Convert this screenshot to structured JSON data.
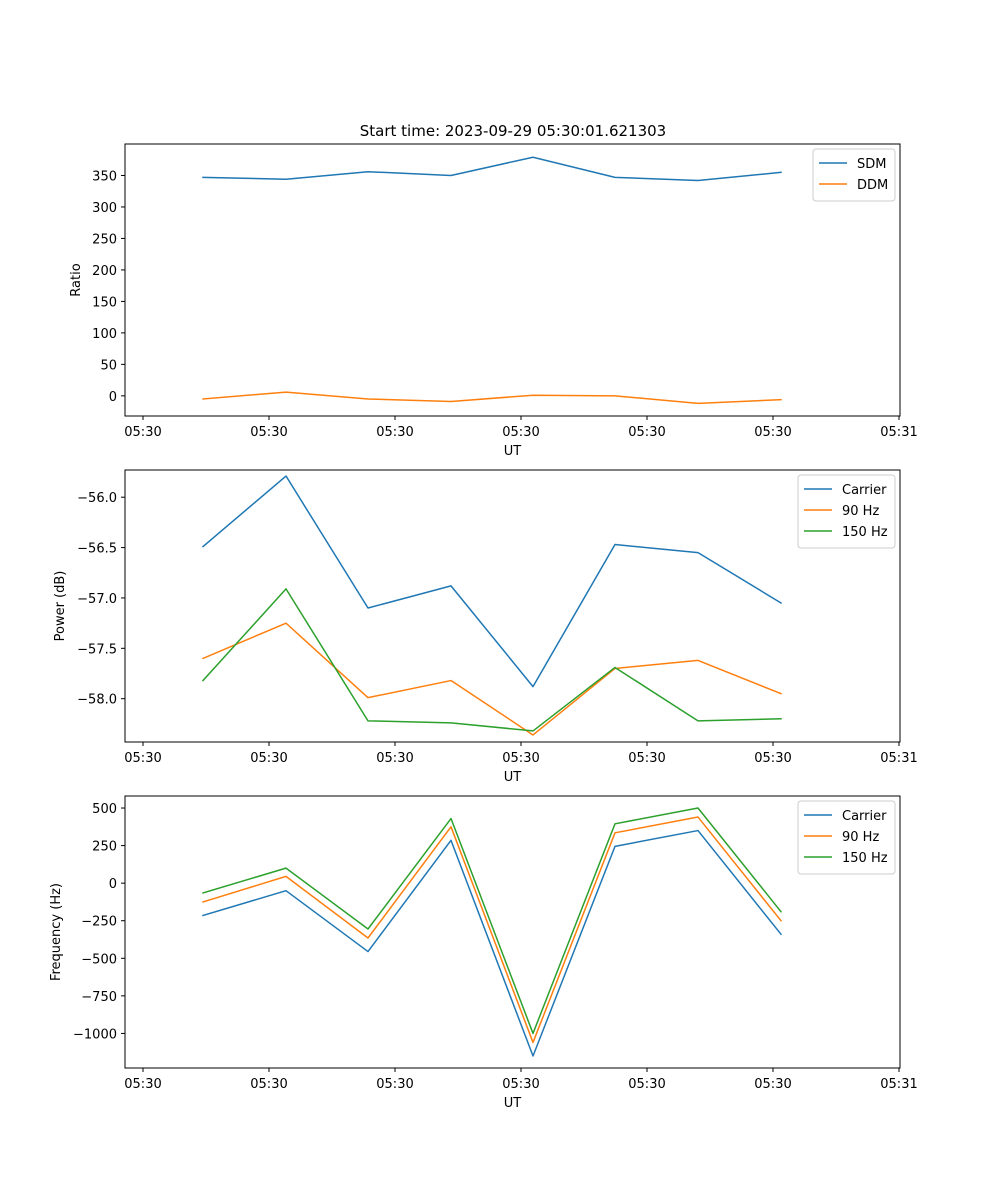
{
  "figure": {
    "title": "Start time: 2023-09-29 05:30:01.621303"
  },
  "chart_data": [
    {
      "type": "line",
      "title": "Start time: 2023-09-29 05:30:01.621303",
      "xlabel": "UT",
      "ylabel": "Ratio",
      "x": [
        1,
        2,
        3,
        4,
        5,
        6,
        7,
        8
      ],
      "xlim": [
        0.8,
        9.0
      ],
      "xticks": [
        1,
        2.5,
        4,
        5.5,
        7,
        8.5
      ],
      "xtick_positions": [
        1,
        2,
        3,
        4,
        5,
        6,
        7,
        8,
        9.0
      ],
      "xtick_labels": [
        "05:30",
        "05:30",
        "05:30",
        "05:30",
        "05:30",
        "05:30",
        "05:30",
        "05:30",
        "05:31"
      ],
      "ylim": [
        -32,
        400
      ],
      "yticks": [
        0,
        50,
        100,
        150,
        200,
        250,
        300,
        350
      ],
      "ytick_labels": [
        "0",
        "50",
        "100",
        "150",
        "200",
        "250",
        "300",
        "350"
      ],
      "legend": "top-right",
      "series": [
        {
          "name": "SDM",
          "color": "#1f77b4",
          "values": [
            347,
            344,
            356,
            350,
            379,
            347,
            342,
            355
          ]
        },
        {
          "name": "DDM",
          "color": "#ff7f0e",
          "values": [
            -5,
            6,
            -5,
            -9,
            1,
            0,
            -12,
            -6
          ]
        }
      ]
    },
    {
      "type": "line",
      "title": "",
      "xlabel": "UT",
      "ylabel": "Power (dB)",
      "x": [
        1,
        2,
        3,
        4,
        5,
        6,
        7,
        8
      ],
      "xlim": [
        0.8,
        9.0
      ],
      "xtick_positions": [
        1,
        2,
        3,
        4,
        5,
        6,
        7,
        8,
        9.0
      ],
      "xtick_labels": [
        "05:30",
        "05:30",
        "05:30",
        "05:30",
        "05:30",
        "05:30",
        "05:30",
        "05:30",
        "05:31"
      ],
      "ylim": [
        -58.43,
        -55.73
      ],
      "yticks": [
        -58.0,
        -57.5,
        -57.0,
        -56.5,
        -56.0
      ],
      "ytick_labels": [
        "−58.0",
        "−57.5",
        "−57.0",
        "−56.5",
        "−56.0"
      ],
      "legend": "top-right",
      "series": [
        {
          "name": "Carrier",
          "color": "#1f77b4",
          "values": [
            -56.49,
            -55.79,
            -57.1,
            -56.88,
            -57.88,
            -56.47,
            -56.55,
            -57.05
          ]
        },
        {
          "name": "90 Hz",
          "color": "#ff7f0e",
          "values": [
            -57.6,
            -57.25,
            -57.99,
            -57.82,
            -58.36,
            -57.7,
            -57.62,
            -57.95
          ]
        },
        {
          "name": "150 Hz",
          "color": "#2ca02c",
          "values": [
            -57.82,
            -56.91,
            -58.22,
            -58.24,
            -58.32,
            -57.69,
            -58.22,
            -58.2
          ]
        }
      ]
    },
    {
      "type": "line",
      "title": "",
      "xlabel": "UT",
      "ylabel": "Frequency (Hz)",
      "x": [
        1,
        2,
        3,
        4,
        5,
        6,
        7,
        8
      ],
      "xlim": [
        0.8,
        9.0
      ],
      "xtick_positions": [
        1,
        2,
        3,
        4,
        5,
        6,
        7,
        8,
        9.0
      ],
      "xtick_labels": [
        "05:30",
        "05:30",
        "05:30",
        "05:30",
        "05:30",
        "05:30",
        "05:30",
        "05:30",
        "05:31"
      ],
      "ylim": [
        -1230,
        580
      ],
      "yticks": [
        -1000,
        -750,
        -500,
        -250,
        0,
        250,
        500
      ],
      "ytick_labels": [
        "−1000",
        "−750",
        "−500",
        "−250",
        "0",
        "250",
        "500"
      ],
      "legend": "top-right",
      "series": [
        {
          "name": "Carrier",
          "color": "#1f77b4",
          "values": [
            -215,
            -50,
            -455,
            285,
            -1150,
            245,
            350,
            -340
          ]
        },
        {
          "name": "90 Hz",
          "color": "#ff7f0e",
          "values": [
            -125,
            45,
            -365,
            375,
            -1060,
            335,
            440,
            -250
          ]
        },
        {
          "name": "150 Hz",
          "color": "#2ca02c",
          "values": [
            -65,
            100,
            -305,
            430,
            -1000,
            395,
            500,
            -190
          ]
        }
      ]
    }
  ]
}
